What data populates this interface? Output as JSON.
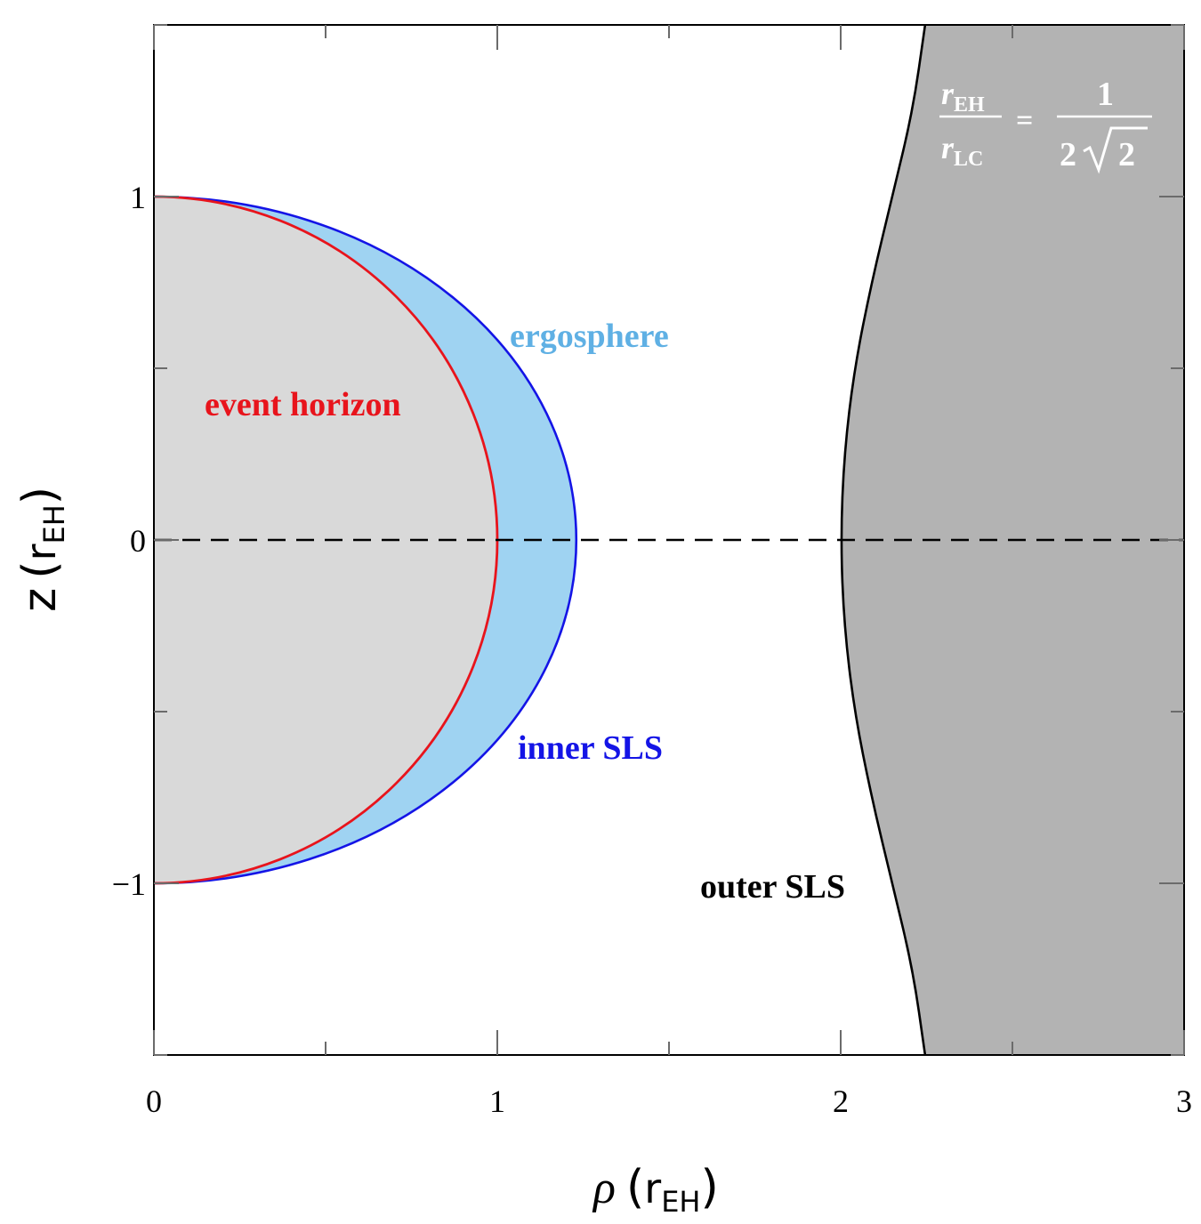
{
  "chart_data": {
    "type": "area",
    "xlabel": {
      "symbol": "ρ",
      "unit_base": "r",
      "unit_sub": "EH"
    },
    "ylabel": {
      "symbol": "z",
      "unit_base": "r",
      "unit_sub": "EH"
    },
    "xlim": [
      0,
      3
    ],
    "ylim": [
      -1.5,
      1.5
    ],
    "x_ticks": [
      "0",
      "1",
      "2",
      "3"
    ],
    "y_ticks": [
      "1",
      "0",
      "−1"
    ],
    "x_tick_values": [
      0,
      1,
      2,
      3
    ],
    "y_tick_values": [
      1,
      0,
      -1
    ],
    "equator_dashed_line": {
      "z": 0,
      "x_range": [
        0,
        3
      ]
    },
    "series": [
      {
        "name": "event horizon",
        "label_text": "event horizon",
        "color": "#e8141c",
        "fill": "#d9d9d9",
        "shape": "half-circle",
        "radius": 1.0,
        "points": [
          [
            0,
            1
          ],
          [
            0.383,
            0.924
          ],
          [
            0.707,
            0.707
          ],
          [
            0.924,
            0.383
          ],
          [
            1,
            0
          ],
          [
            0.924,
            -0.383
          ],
          [
            0.707,
            -0.707
          ],
          [
            0.383,
            -0.924
          ],
          [
            0,
            -1
          ]
        ]
      },
      {
        "name": "inner SLS",
        "label_text": "inner SLS",
        "color": "#1414e6",
        "fill": "#9fd3f2",
        "shape": "half-ellipse",
        "rho_equator": 1.23,
        "z_pole": 1.0,
        "points": [
          [
            0,
            1
          ],
          [
            0.47,
            0.924
          ],
          [
            0.87,
            0.707
          ],
          [
            1.136,
            0.383
          ],
          [
            1.23,
            0
          ],
          [
            1.136,
            -0.383
          ],
          [
            0.87,
            -0.707
          ],
          [
            0.47,
            -0.924
          ],
          [
            0,
            -1
          ]
        ]
      },
      {
        "name": "outer SLS",
        "label_text": "outer SLS",
        "color": "#000000",
        "fill": "#b3b3b3",
        "points": [
          [
            2.2458,
            1.5
          ],
          [
            2.21,
            1.25
          ],
          [
            2.15,
            1.0
          ],
          [
            2.09,
            0.75
          ],
          [
            2.04,
            0.5
          ],
          [
            2.01,
            0.25
          ],
          [
            2.0,
            0
          ],
          [
            2.01,
            -0.25
          ],
          [
            2.04,
            -0.5
          ],
          [
            2.09,
            -0.75
          ],
          [
            2.15,
            -1.0
          ],
          [
            2.21,
            -1.25
          ],
          [
            2.2458,
            -1.5
          ]
        ]
      }
    ],
    "region_label": {
      "text": "ergosphere",
      "color": "#5fb0e4"
    },
    "annotation_ratio": {
      "numerator_base": "r",
      "numerator_sub": "EH",
      "denominator_base": "r",
      "denominator_sub": "LC",
      "equals": "=",
      "rhs_numerator": "1",
      "rhs_denominator_coef": "2",
      "rhs_denominator_root": "2",
      "color": "#ffffff"
    }
  }
}
